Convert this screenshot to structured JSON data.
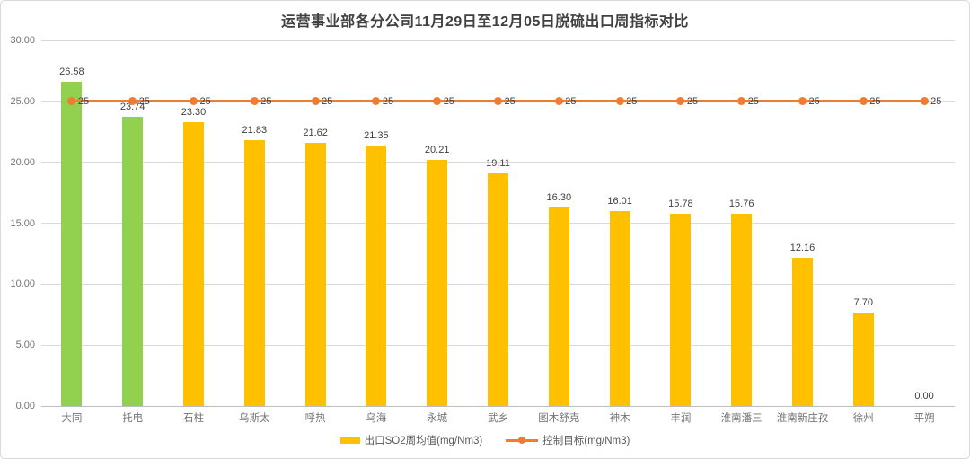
{
  "chart_data": {
    "type": "bar",
    "subtype": "bar-line-combo",
    "title": "运营事业部各分公司11月29日至12月05日脱硫出口周指标对比",
    "categories": [
      "大同",
      "托电",
      "石柱",
      "乌斯太",
      "呼热",
      "乌海",
      "永城",
      "武乡",
      "图木舒克",
      "神木",
      "丰润",
      "淮南潘三",
      "淮南新庄孜",
      "徐州",
      "平朔"
    ],
    "series": [
      {
        "name": "出口SO2周均值(mg/Nm3)",
        "type": "bar",
        "values": [
          26.58,
          23.74,
          23.3,
          21.83,
          21.62,
          21.35,
          20.21,
          19.11,
          16.3,
          16.01,
          15.78,
          15.76,
          12.16,
          7.7,
          0.0
        ],
        "labels": [
          "26.58",
          "23.74",
          "23.30",
          "21.83",
          "21.62",
          "21.35",
          "20.21",
          "19.11",
          "16.30",
          "16.01",
          "15.78",
          "15.76",
          "12.16",
          "7.70",
          "0.00"
        ],
        "default_color": "#FFC000",
        "highlight_color": "#92D050",
        "highlight_indices": [
          0,
          1
        ]
      },
      {
        "name": "控制目标(mg/Nm3)",
        "type": "line",
        "value": 25,
        "point_label": "25",
        "color": "#ED7D31"
      }
    ],
    "y_axis": {
      "min": 0,
      "max": 30,
      "step": 5,
      "tick_labels": [
        "0.00",
        "5.00",
        "10.00",
        "15.00",
        "20.00",
        "25.00",
        "30.00"
      ]
    },
    "grid": true,
    "legend_position": "bottom",
    "colors": {
      "gridline": "#D9D9D9",
      "axis_line": "#BFBFBF",
      "tick_text": "#737373",
      "value_label_text": "#404040",
      "title_text": "#404040"
    }
  }
}
